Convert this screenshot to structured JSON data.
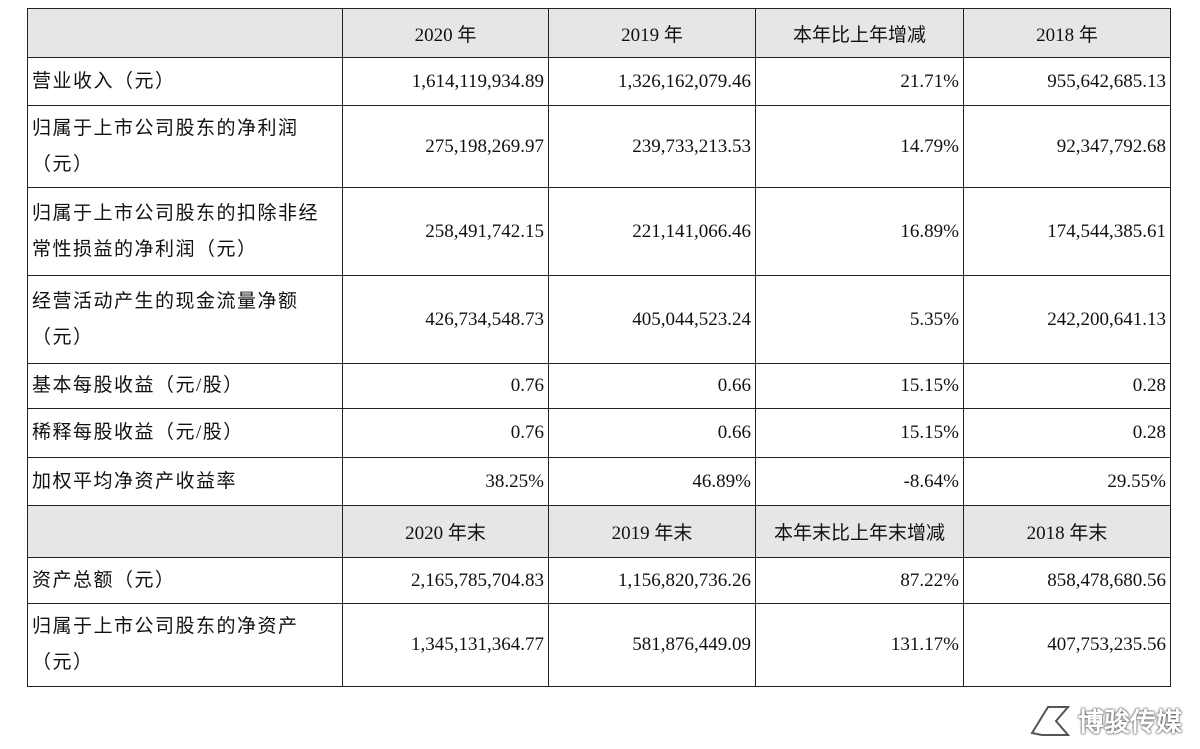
{
  "table": {
    "header1": [
      "2020 年",
      "2019 年",
      "本年比上年增减",
      "2018 年"
    ],
    "rows": [
      [
        "营业收入（元）",
        "1,614,119,934.89",
        "1,326,162,079.46",
        "21.71%",
        "955,642,685.13"
      ],
      [
        "归属于上市公司股东的净利润（元）",
        "275,198,269.97",
        "239,733,213.53",
        "14.79%",
        "92,347,792.68"
      ],
      [
        "归属于上市公司股东的扣除非经常性损益的净利润（元）",
        "258,491,742.15",
        "221,141,066.46",
        "16.89%",
        "174,544,385.61"
      ],
      [
        "经营活动产生的现金流量净额（元）",
        "426,734,548.73",
        "405,044,523.24",
        "5.35%",
        "242,200,641.13"
      ],
      [
        "基本每股收益（元/股）",
        "0.76",
        "0.66",
        "15.15%",
        "0.28"
      ],
      [
        "稀释每股收益（元/股）",
        "0.76",
        "0.66",
        "15.15%",
        "0.28"
      ],
      [
        "加权平均净资产收益率",
        "38.25%",
        "46.89%",
        "-8.64%",
        "29.55%"
      ]
    ],
    "header2": [
      "2020 年末",
      "2019 年末",
      "本年末比上年末增减",
      "2018 年末"
    ],
    "rows2": [
      [
        "资产总额（元）",
        "2,165,785,704.83",
        "1,156,820,736.26",
        "87.22%",
        "858,478,680.56"
      ],
      [
        "归属于上市公司股东的净资产（元）",
        "1,345,131,364.77",
        "581,876,449.09",
        "131.17%",
        "407,753,235.56"
      ]
    ]
  },
  "watermark": "博骏传媒"
}
